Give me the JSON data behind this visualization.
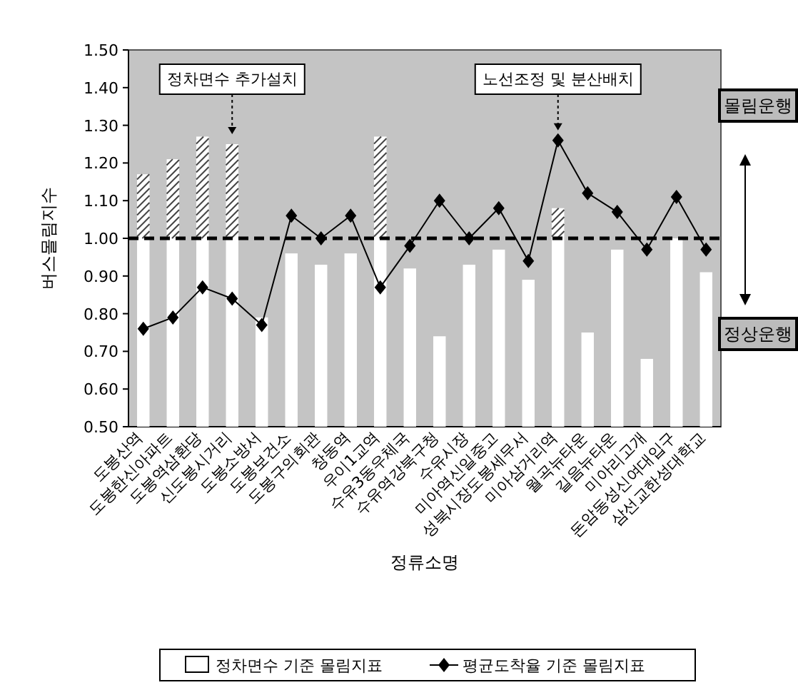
{
  "chart_data": {
    "type": "bar",
    "xlabel": "정류소명",
    "ylabel": "버스몰림지수",
    "categories": [
      "도봉산역",
      "도봉한신아파트",
      "도봉역삼환당",
      "신도봉시거리",
      "도봉소방서",
      "도봉보건소",
      "도봉구의회관",
      "창동역",
      "우이1교역",
      "수유3동우체국",
      "수유역강북구청",
      "수유시장",
      "미아역신일중고",
      "성북시장도봉세무서",
      "미아삼거리역",
      "월곡뉴타운",
      "길음뉴타운",
      "미아리고개",
      "돈암동성신여대입구",
      "삼선교한성대학교"
    ],
    "series": [
      {
        "name": "정차면수 기준 몰림지표",
        "color": "#ffffff",
        "values": [
          1.17,
          1.21,
          1.27,
          1.25,
          0.79,
          0.96,
          0.93,
          0.96,
          1.27,
          0.92,
          0.74,
          0.93,
          0.97,
          0.89,
          1.08,
          0.75,
          0.97,
          0.68,
          1.0,
          0.91
        ]
      },
      {
        "name": "평균도착율 기준 몰림지표",
        "type": "line",
        "color": "#000000",
        "values": [
          0.76,
          0.79,
          0.87,
          0.84,
          0.77,
          1.06,
          1.0,
          1.06,
          0.87,
          0.98,
          1.1,
          1.0,
          1.08,
          0.94,
          1.26,
          1.12,
          1.07,
          0.97,
          1.11,
          0.97
        ]
      }
    ],
    "ylim": [
      0.5,
      1.5
    ],
    "yticks": [
      {
        "value": 0.5,
        "label": "0.50"
      },
      {
        "value": 0.6,
        "label": "0.60"
      },
      {
        "value": 0.7,
        "label": "0.70"
      },
      {
        "value": 0.8,
        "label": "0.80"
      },
      {
        "value": 0.9,
        "label": "0.90"
      },
      {
        "value": 1.0,
        "label": "1.00"
      },
      {
        "value": 1.1,
        "label": "1.10"
      },
      {
        "value": 1.2,
        "label": "1.20"
      },
      {
        "value": 1.3,
        "label": "1.30"
      },
      {
        "value": 1.4,
        "label": "1.40"
      },
      {
        "value": 1.5,
        "label": "1.50"
      }
    ],
    "ref_lines": [
      {
        "axis": "y",
        "value": 1.0,
        "line_style": "dashed",
        "color": "#000000"
      }
    ],
    "annotations": [
      {
        "text": "정차면수 추가설치",
        "x": "신도봉시거리",
        "y": 1.25
      },
      {
        "text": "노선조정 및 분산배치",
        "x": "미아삼거리역",
        "y": 1.26
      },
      "몰림운행",
      "정상운행"
    ],
    "marker": "diamond",
    "line_style": "solid",
    "legend": "bottom",
    "grid": false
  }
}
